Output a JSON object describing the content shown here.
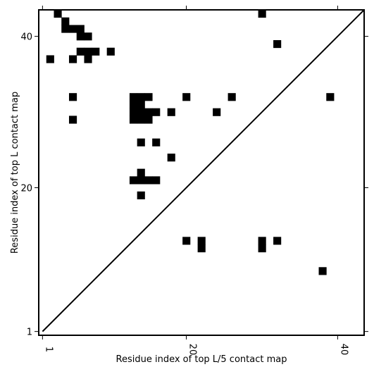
{
  "chart_data": {
    "type": "heatmap",
    "title": "",
    "xlabel": "Residue index of top L/5 contact map",
    "ylabel": "Residue index of top L contact map",
    "xlim": [
      0.5,
      43.5
    ],
    "ylim": [
      0.5,
      43.5
    ],
    "xticks": [
      1,
      20,
      40
    ],
    "yticks": [
      1,
      20,
      40
    ],
    "xtick_labels": [
      "1",
      "20",
      "40"
    ],
    "ytick_labels": [
      "1",
      "20",
      "40"
    ],
    "diagonal": true,
    "grid": false,
    "colors": {
      "cell": "#000000",
      "background": "#ffffff",
      "frame": "#000000"
    },
    "cells": [
      [
        3,
        43
      ],
      [
        30,
        43
      ],
      [
        4,
        42
      ],
      [
        4,
        41
      ],
      [
        5,
        41
      ],
      [
        6,
        41
      ],
      [
        6,
        40
      ],
      [
        7,
        40
      ],
      [
        32,
        39
      ],
      [
        6,
        38
      ],
      [
        7,
        38
      ],
      [
        8,
        38
      ],
      [
        10,
        38
      ],
      [
        2,
        37
      ],
      [
        5,
        37
      ],
      [
        7,
        37
      ],
      [
        5,
        32
      ],
      [
        13,
        32
      ],
      [
        14,
        32
      ],
      [
        15,
        32
      ],
      [
        20,
        32
      ],
      [
        26,
        32
      ],
      [
        39,
        32
      ],
      [
        13,
        31
      ],
      [
        14,
        31
      ],
      [
        13,
        30
      ],
      [
        14,
        30
      ],
      [
        15,
        30
      ],
      [
        16,
        30
      ],
      [
        18,
        30
      ],
      [
        24,
        30
      ],
      [
        5,
        29
      ],
      [
        13,
        29
      ],
      [
        14,
        29
      ],
      [
        15,
        29
      ],
      [
        14,
        26
      ],
      [
        16,
        26
      ],
      [
        18,
        24
      ],
      [
        14,
        22
      ],
      [
        13,
        21
      ],
      [
        14,
        21
      ],
      [
        15,
        21
      ],
      [
        16,
        21
      ],
      [
        14,
        19
      ],
      [
        20,
        13
      ],
      [
        22,
        13
      ],
      [
        30,
        13
      ],
      [
        32,
        13
      ],
      [
        22,
        12
      ],
      [
        30,
        12
      ],
      [
        38,
        9
      ]
    ]
  }
}
